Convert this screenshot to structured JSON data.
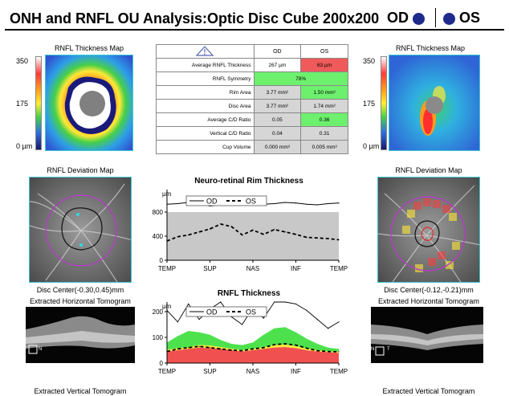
{
  "header": {
    "title": "ONH and RNFL OU Analysis:Optic Disc Cube 200x200",
    "od_label": "OD",
    "os_label": "OS",
    "eye_dot_color": "#1e2a8c"
  },
  "left_thickness_map": {
    "title": "RNFL Thickness Map",
    "scale_max": "350",
    "scale_mid": "175",
    "scale_min": "0 µm"
  },
  "right_thickness_map": {
    "title": "RNFL Thickness Map",
    "scale_max": "350",
    "scale_mid": "175",
    "scale_min": "0 µm"
  },
  "table": {
    "col_od": "OD",
    "col_os": "OS",
    "warning_icon": "warning-triangle-icon",
    "rows": [
      {
        "label": "Average RNFL Thickness",
        "od": "267 µm",
        "os": "63 µm",
        "od_color": "#ffffff",
        "os_color": "#f05a5a"
      },
      {
        "label": "RNFL Symmetry",
        "merged": "78%",
        "merged_color": "#6df06d"
      },
      {
        "label": "Rim Area",
        "od": "3.77 mm²",
        "os": "1.50 mm²",
        "od_color": "#d6d6d6",
        "os_color": "#6df06d"
      },
      {
        "label": "Disc Area",
        "od": "3.77 mm²",
        "os": "1.74 mm²",
        "od_color": "#d6d6d6",
        "os_color": "#d6d6d6"
      },
      {
        "label": "Average C/D Ratio",
        "od": "0.05",
        "os": "0.36",
        "od_color": "#d6d6d6",
        "os_color": "#6df06d"
      },
      {
        "label": "Vertical C/D Ratio",
        "od": "0.04",
        "os": "0.31",
        "od_color": "#d6d6d6",
        "os_color": "#d6d6d6"
      },
      {
        "label": "Cup Volume",
        "od": "0.000 mm³",
        "os": "0.005 mm³",
        "od_color": "#d6d6d6",
        "os_color": "#d6d6d6"
      }
    ]
  },
  "left_deviation": {
    "title": "RNFL Deviation Map",
    "disc_center": "Disc Center(-0.30,0.45)mm",
    "horizontal_tomogram": "Extracted Horizontal Tomogram",
    "vertical_tomogram": "Extracted Vertical Tomogram",
    "tomo_marker_left": "T",
    "tomo_marker_right": "N"
  },
  "right_deviation": {
    "title": "RNFL Deviation Map",
    "disc_center": "Disc Center(-0.12,-0.21)mm",
    "horizontal_tomogram": "Extracted Horizontal Tomogram",
    "vertical_tomogram": "Extracted Vertical Tomogram",
    "tomo_marker_left": "N",
    "tomo_marker_right": "T"
  },
  "chart_data": [
    {
      "type": "line",
      "title": "Neuro-retinal Rim Thickness",
      "ylabel": "µm",
      "ylim": [
        0,
        800
      ],
      "yticks": [
        "0",
        "400",
        "800"
      ],
      "xticks": [
        "TEMP",
        "SUP",
        "NAS",
        "INF",
        "TEMP"
      ],
      "legend": [
        "OD",
        "OS"
      ],
      "grey_band": [
        0,
        800
      ],
      "series": [
        {
          "name": "OD",
          "style": "solid",
          "values": [
            930,
            940,
            960,
            940,
            900,
            920,
            960,
            980,
            950,
            930,
            940,
            960,
            950,
            930,
            920,
            940,
            950
          ]
        },
        {
          "name": "OS",
          "style": "dashed",
          "values": [
            320,
            390,
            420,
            470,
            520,
            600,
            560,
            420,
            500,
            430,
            510,
            470,
            430,
            380,
            370,
            360,
            340
          ]
        }
      ]
    },
    {
      "type": "area",
      "title": "RNFL Thickness",
      "ylabel": "µm",
      "ylim": [
        0,
        200
      ],
      "yticks": [
        "0",
        "100",
        "200"
      ],
      "xticks": [
        "TEMP",
        "SUP",
        "NAS",
        "INF",
        "TEMP"
      ],
      "legend": [
        "OD",
        "OS"
      ],
      "normative_bands": {
        "red_upper": [
          45,
          50,
          55,
          60,
          58,
          55,
          50,
          45,
          50,
          55,
          60,
          62,
          58,
          50,
          45,
          42,
          40
        ],
        "yellow_upper": [
          52,
          58,
          62,
          70,
          68,
          62,
          55,
          50,
          55,
          62,
          70,
          72,
          66,
          56,
          50,
          46,
          44
        ],
        "green_upper": [
          80,
          105,
          125,
          120,
          110,
          90,
          75,
          70,
          80,
          110,
          135,
          140,
          120,
          95,
          75,
          60,
          55
        ],
        "white_upper": [
          200,
          200,
          200,
          200,
          200,
          200,
          200,
          200,
          200,
          200,
          200,
          200,
          200,
          200,
          200,
          200,
          200
        ]
      },
      "series": [
        {
          "name": "OD",
          "style": "solid",
          "values": [
            205,
            160,
            230,
            170,
            210,
            240,
            180,
            150,
            215,
            175,
            240,
            250,
            230,
            205,
            170,
            135,
            160
          ]
        },
        {
          "name": "OS",
          "style": "dashed",
          "values": [
            45,
            55,
            60,
            65,
            60,
            55,
            50,
            48,
            55,
            60,
            72,
            75,
            70,
            58,
            48,
            45,
            44
          ]
        }
      ]
    }
  ]
}
